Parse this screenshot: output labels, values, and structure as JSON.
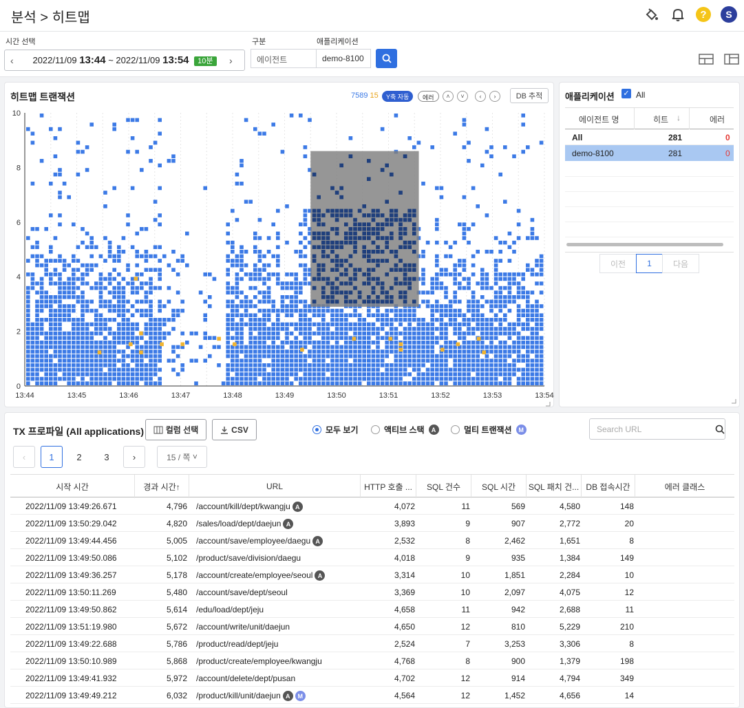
{
  "header": {
    "title": "분석 > 히트맵",
    "help": "?",
    "avatar": "S"
  },
  "filters": {
    "time_label": "시간 선택",
    "time_from_date": "2022/11/09",
    "time_from_clock": "13:44",
    "time_sep": "~",
    "time_to_date": "2022/11/09",
    "time_to_clock": "13:54",
    "duration_badge": "10분",
    "type_label": "구분",
    "type_value": "에이전트",
    "app_label": "애플리케이션",
    "app_value": "demo-8100"
  },
  "heatmap": {
    "title": "히트맵 트랜잭션",
    "count_normal": "7589",
    "count_error": "15",
    "y_auto_label": "Y축 자동",
    "error_label": "에러",
    "db_track_label": "DB 추적",
    "colors": {
      "normal": "#3c7ae6",
      "error": "#f1b531",
      "selected": "#1f3f7c",
      "selection": "#7f7f7f"
    }
  },
  "chart_data": {
    "type": "heatmap",
    "x_ticks": [
      "13:44",
      "13:45",
      "13:46",
      "13:47",
      "13:48",
      "13:49",
      "13:50",
      "13:51",
      "13:52",
      "13:53",
      "13:54"
    ],
    "y_ticks": [
      "0",
      "2",
      "4",
      "6",
      "8",
      "10"
    ],
    "ylim": [
      0,
      10
    ],
    "xlim": [
      "13:44",
      "13:54"
    ],
    "selection": {
      "x_from": "13:49:30",
      "x_to": "13:51:35",
      "y_from": 2.9,
      "y_to": 8.6
    },
    "error_cells": [
      [
        2.2,
        2.0
      ],
      [
        2.0,
        1.6
      ],
      [
        2.6,
        1.6
      ],
      [
        2.2,
        1.3
      ],
      [
        3.0,
        1.6
      ],
      [
        3.7,
        1.8
      ],
      [
        4.0,
        1.6
      ],
      [
        1.4,
        1.3
      ],
      [
        2.1,
        4.0
      ],
      [
        5.3,
        1.4
      ],
      [
        6.3,
        1.8
      ],
      [
        7.2,
        1.4
      ],
      [
        7.0,
        1.8
      ],
      [
        7.2,
        1.6
      ],
      [
        8.0,
        1.4
      ],
      [
        8.3,
        1.6
      ],
      [
        8.7,
        1.8
      ],
      [
        8.8,
        1.3
      ]
    ]
  },
  "app_panel": {
    "title": "애플리케이션",
    "all_label": "All",
    "headers": {
      "agent": "에이전트 명",
      "hit": "히트",
      "error": "에러"
    },
    "rows": [
      {
        "agent": "All",
        "hit": "281",
        "error": "0"
      },
      {
        "agent": "demo-8100",
        "hit": "281",
        "error": "0"
      }
    ],
    "pager": {
      "prev": "이전",
      "page": "1",
      "next": "다음"
    }
  },
  "profile": {
    "title": "TX 프로파일 (All applications)",
    "column_select": "컬럼 선택",
    "csv": "CSV",
    "radios": {
      "all": "모두 보기",
      "active": "액티브 스택",
      "active_tag": "A",
      "multi": "멀티 트랜잭션",
      "multi_tag": "M"
    },
    "search_placeholder": "Search URL",
    "pages": [
      "1",
      "2",
      "3"
    ],
    "per_page": "15 / 쪽",
    "columns": {
      "start": "시작 시간",
      "elapsed": "경과 시간↑",
      "url": "URL",
      "http": "HTTP 호출 ...",
      "sql_count": "SQL 건수",
      "sql_time": "SQL 시간",
      "sql_fetch": "SQL 패치 건...",
      "db_conn": "DB 접속시간",
      "error_class": "에러 클래스"
    },
    "rows": [
      {
        "start": "2022/11/09 13:49:26.671",
        "elapsed": "4,796",
        "url": "/account/kill/dept/kwangju",
        "tags": "A",
        "http": "4,072",
        "sqlc": "11",
        "sqlt": "569",
        "fetch": "4,580",
        "db": "148"
      },
      {
        "start": "2022/11/09 13:50:29.042",
        "elapsed": "4,820",
        "url": "/sales/load/dept/daejun",
        "tags": "A",
        "http": "3,893",
        "sqlc": "9",
        "sqlt": "907",
        "fetch": "2,772",
        "db": "20"
      },
      {
        "start": "2022/11/09 13:49:44.456",
        "elapsed": "5,005",
        "url": "/account/save/employee/daegu",
        "tags": "A",
        "http": "2,532",
        "sqlc": "8",
        "sqlt": "2,462",
        "fetch": "1,651",
        "db": "8"
      },
      {
        "start": "2022/11/09 13:49:50.086",
        "elapsed": "5,102",
        "url": "/product/save/division/daegu",
        "tags": "",
        "http": "4,018",
        "sqlc": "9",
        "sqlt": "935",
        "fetch": "1,384",
        "db": "149"
      },
      {
        "start": "2022/11/09 13:49:36.257",
        "elapsed": "5,178",
        "url": "/account/create/employee/seoul",
        "tags": "A",
        "http": "3,314",
        "sqlc": "10",
        "sqlt": "1,851",
        "fetch": "2,284",
        "db": "10"
      },
      {
        "start": "2022/11/09 13:50:11.269",
        "elapsed": "5,480",
        "url": "/account/save/dept/seoul",
        "tags": "",
        "http": "3,369",
        "sqlc": "10",
        "sqlt": "2,097",
        "fetch": "4,075",
        "db": "12"
      },
      {
        "start": "2022/11/09 13:49:50.862",
        "elapsed": "5,614",
        "url": "/edu/load/dept/jeju",
        "tags": "",
        "http": "4,658",
        "sqlc": "11",
        "sqlt": "942",
        "fetch": "2,688",
        "db": "11"
      },
      {
        "start": "2022/11/09 13:51:19.980",
        "elapsed": "5,672",
        "url": "/account/write/unit/daejun",
        "tags": "",
        "http": "4,650",
        "sqlc": "12",
        "sqlt": "810",
        "fetch": "5,229",
        "db": "210"
      },
      {
        "start": "2022/11/09 13:49:22.688",
        "elapsed": "5,786",
        "url": "/product/read/dept/jeju",
        "tags": "",
        "http": "2,524",
        "sqlc": "7",
        "sqlt": "3,253",
        "fetch": "3,306",
        "db": "8"
      },
      {
        "start": "2022/11/09 13:50:10.989",
        "elapsed": "5,868",
        "url": "/product/create/employee/kwangju",
        "tags": "",
        "http": "4,768",
        "sqlc": "8",
        "sqlt": "900",
        "fetch": "1,379",
        "db": "198"
      },
      {
        "start": "2022/11/09 13:49:41.932",
        "elapsed": "5,972",
        "url": "/account/delete/dept/pusan",
        "tags": "",
        "http": "4,702",
        "sqlc": "12",
        "sqlt": "914",
        "fetch": "4,794",
        "db": "349"
      },
      {
        "start": "2022/11/09 13:49:49.212",
        "elapsed": "6,032",
        "url": "/product/kill/unit/daejun",
        "tags": "AM",
        "http": "4,564",
        "sqlc": "12",
        "sqlt": "1,452",
        "fetch": "4,656",
        "db": "14"
      }
    ]
  }
}
